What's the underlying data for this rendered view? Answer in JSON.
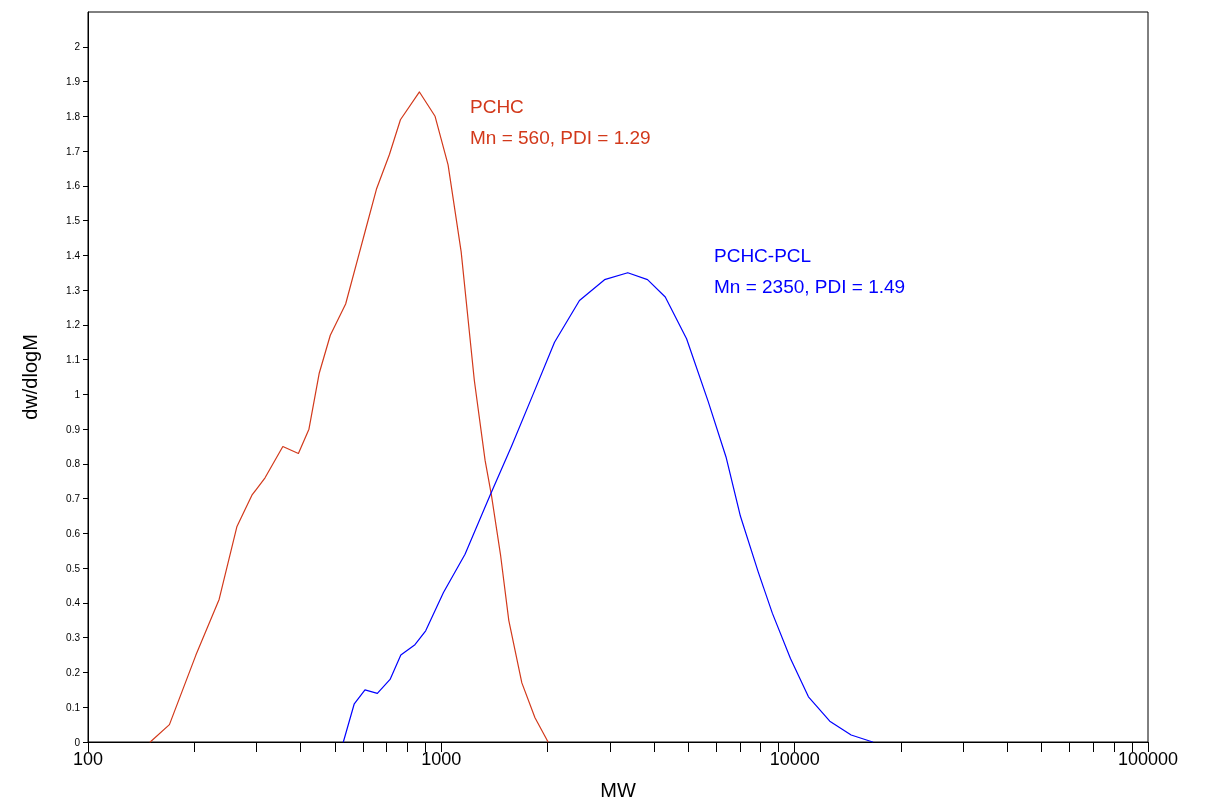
{
  "chart_data": {
    "type": "line",
    "xlabel": "MW",
    "ylabel": "dw/dlogM",
    "log": "x",
    "grid": false,
    "legend": false,
    "marker": "none",
    "line_style": "solid",
    "xlim": [
      100,
      100000
    ],
    "xticks": [
      100,
      {
        "value": 200,
        "label": null
      },
      {
        "value": 300,
        "label": null
      },
      {
        "value": 400,
        "label": null
      },
      {
        "value": 500,
        "label": null
      },
      {
        "value": 600,
        "label": null
      },
      {
        "value": 700,
        "label": null
      },
      {
        "value": 800,
        "label": null
      },
      {
        "value": 900,
        "label": null
      },
      1000,
      {
        "value": 2000,
        "label": null
      },
      {
        "value": 3000,
        "label": null
      },
      {
        "value": 4000,
        "label": null
      },
      {
        "value": 5000,
        "label": null
      },
      {
        "value": 6000,
        "label": null
      },
      {
        "value": 7000,
        "label": null
      },
      {
        "value": 8000,
        "label": null
      },
      {
        "value": 9000,
        "label": null
      },
      10000,
      {
        "value": 20000,
        "label": null
      },
      {
        "value": 30000,
        "label": null
      },
      {
        "value": 40000,
        "label": null
      },
      {
        "value": 50000,
        "label": null
      },
      {
        "value": 60000,
        "label": null
      },
      {
        "value": 70000,
        "label": null
      },
      {
        "value": 80000,
        "label": null
      },
      {
        "value": 90000,
        "label": null
      },
      100000
    ],
    "ylim": [
      0,
      2.1
    ],
    "yticks": [
      0,
      0.1,
      0.2,
      0.3,
      0.4,
      0.5,
      0.6,
      0.7,
      0.8,
      0.9,
      1,
      1.1,
      1.2,
      1.3,
      1.4,
      1.5,
      1.6,
      1.7,
      1.8,
      1.9,
      2
    ],
    "annotations": [
      "Mn = 560, PDI = 1.29",
      "Mn = 2350, PDI = 1.49"
    ],
    "series": [
      {
        "name": "PCHC",
        "color": "#d2391b",
        "x": [
          150,
          170,
          202,
          235,
          264,
          291,
          317,
          356,
          394,
          422,
          451,
          485,
          536,
          609,
          655,
          713,
          766,
          867,
          960,
          1045,
          1138,
          1240,
          1330,
          1386,
          1470,
          1552,
          1690,
          1841,
          2005
        ],
        "values": [
          0,
          0.05,
          0.25,
          0.41,
          0.62,
          0.71,
          0.76,
          0.85,
          0.83,
          0.9,
          1.06,
          1.17,
          1.26,
          1.47,
          1.59,
          1.69,
          1.79,
          1.87,
          1.8,
          1.66,
          1.41,
          1.04,
          0.81,
          0.71,
          0.54,
          0.35,
          0.17,
          0.07,
          0
        ]
      },
      {
        "name": "PCHC-PCL",
        "color": "#0000ff",
        "x": [
          528,
          567,
          608,
          659,
          716,
          768,
          842,
          903,
          1014,
          1167,
          1374,
          1579,
          1818,
          2091,
          2460,
          2897,
          3370,
          3833,
          4303,
          4944,
          5690,
          6393,
          7020,
          7880,
          8650,
          9730,
          10940,
          12570,
          14450,
          16630
        ],
        "values": [
          0,
          0.11,
          0.15,
          0.14,
          0.18,
          0.25,
          0.28,
          0.32,
          0.43,
          0.54,
          0.71,
          0.85,
          1,
          1.15,
          1.27,
          1.33,
          1.35,
          1.33,
          1.28,
          1.16,
          0.98,
          0.82,
          0.65,
          0.49,
          0.37,
          0.24,
          0.13,
          0.06,
          0.02,
          0
        ]
      }
    ]
  }
}
